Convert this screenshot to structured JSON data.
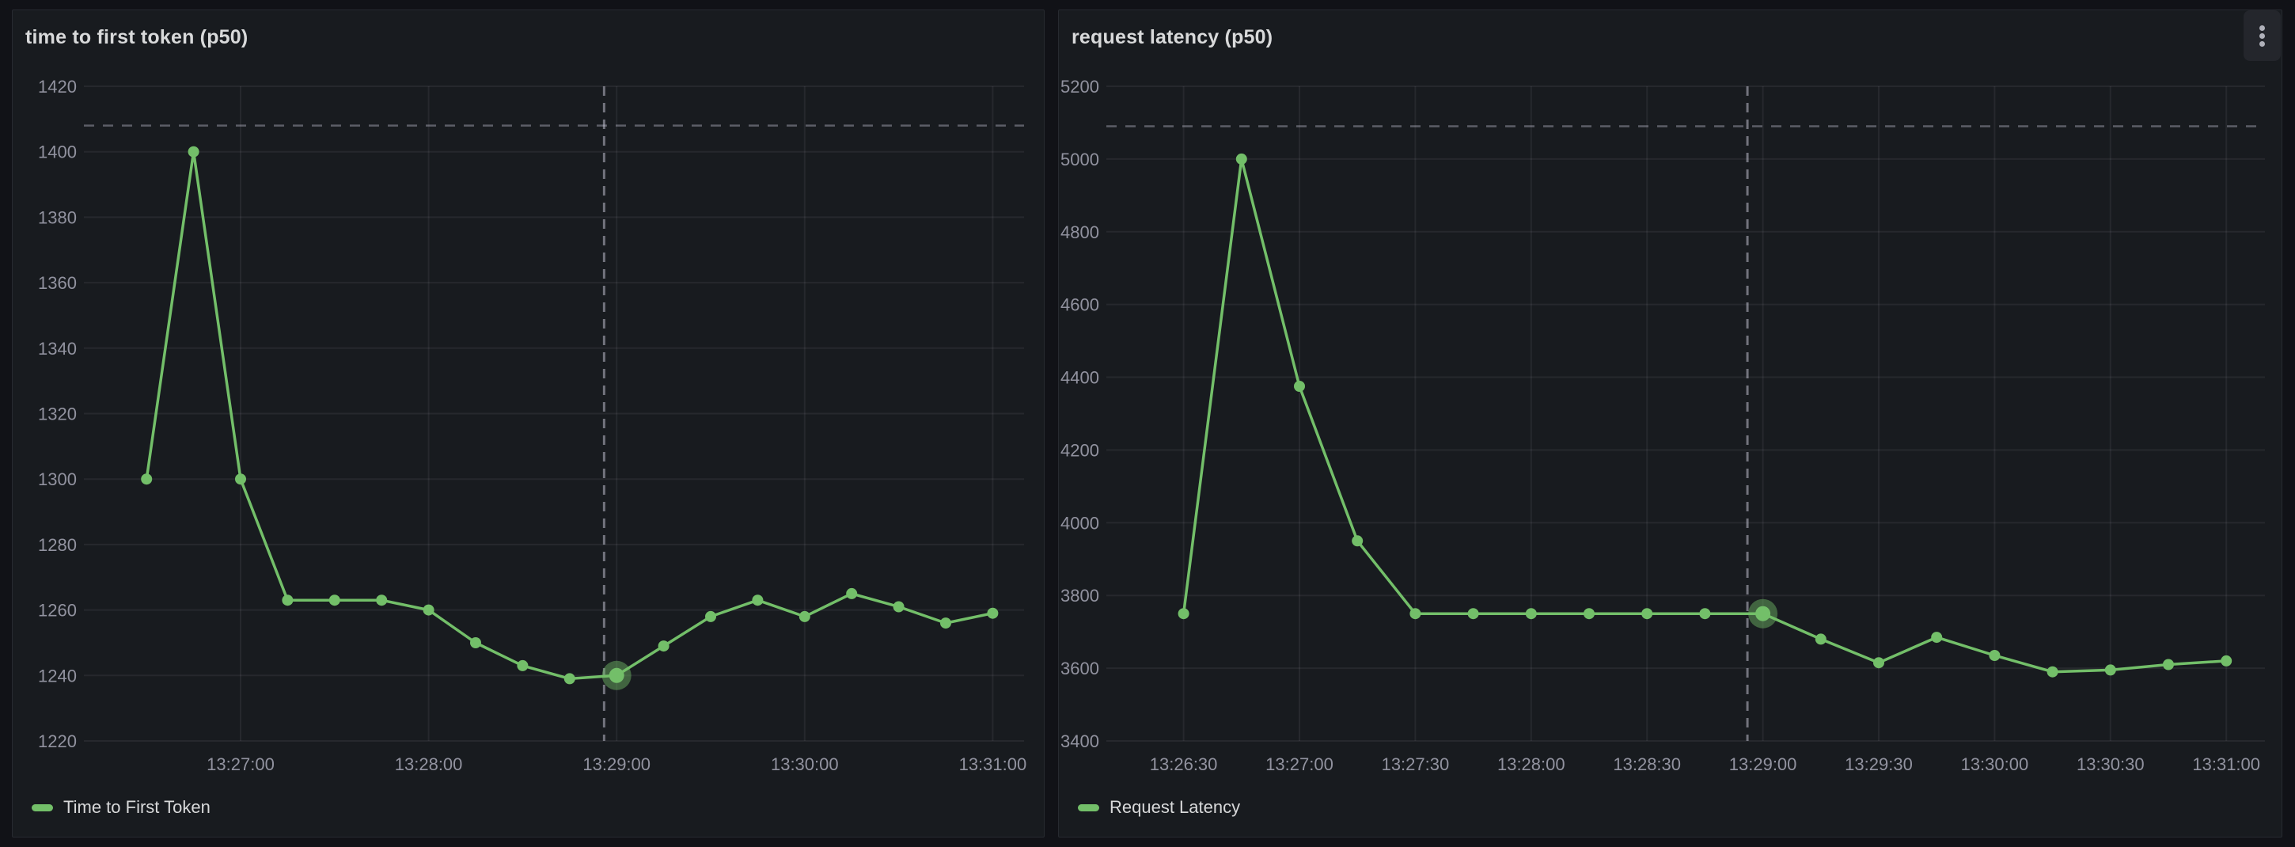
{
  "page": {
    "background": "#111217",
    "panel_background": "#181b1f",
    "accent_color": "#73bf69",
    "text_color": "#d8d9da",
    "tick_label_color": "#9da0ac"
  },
  "panels": [
    {
      "title": "time to first token (p50)",
      "legend": {
        "label": "Time to First Token",
        "swatch_color": "#73bf69"
      }
    },
    {
      "title": "request latency (p50)",
      "legend": {
        "label": "Request Latency",
        "swatch_color": "#73bf69"
      },
      "menu": {
        "icon": "kebab-vertical-icon"
      }
    }
  ],
  "chart_data": [
    {
      "type": "line",
      "title": "time to first token (p50)",
      "x": [
        "13:26:30",
        "13:26:45",
        "13:27:00",
        "13:27:15",
        "13:27:30",
        "13:27:45",
        "13:28:00",
        "13:28:15",
        "13:28:30",
        "13:28:45",
        "13:29:00",
        "13:29:15",
        "13:29:30",
        "13:29:45",
        "13:30:00",
        "13:30:15",
        "13:30:30",
        "13:30:45",
        "13:31:00"
      ],
      "series": [
        {
          "name": "Time to First Token",
          "color": "#73bf69",
          "values": [
            1300,
            1400,
            1300,
            1263,
            1263,
            1263,
            1260,
            1250,
            1243,
            1239,
            1240,
            1249,
            1258,
            1263,
            1258,
            1265,
            1261,
            1256,
            1259
          ]
        }
      ],
      "ylim": [
        1220,
        1420
      ],
      "yticks": [
        1220,
        1240,
        1260,
        1280,
        1300,
        1320,
        1340,
        1360,
        1380,
        1400,
        1420
      ],
      "xticks": [
        "13:27:00",
        "13:28:00",
        "13:29:00",
        "13:30:00",
        "13:31:00"
      ],
      "x_domain": [
        "13:26:10",
        "13:31:10"
      ],
      "threshold": {
        "value": 1408,
        "style": "dashed"
      },
      "crosshair_time": "13:28:56",
      "highlight_index": 10,
      "grid": true,
      "legend_position": "bottom-left",
      "xlabel": "",
      "ylabel": ""
    },
    {
      "type": "line",
      "title": "request latency (p50)",
      "x": [
        "13:26:30",
        "13:26:45",
        "13:27:00",
        "13:27:15",
        "13:27:30",
        "13:27:45",
        "13:28:00",
        "13:28:15",
        "13:28:30",
        "13:28:45",
        "13:29:00",
        "13:29:15",
        "13:29:30",
        "13:29:45",
        "13:30:00",
        "13:30:15",
        "13:30:30",
        "13:30:45",
        "13:31:00"
      ],
      "series": [
        {
          "name": "Request Latency",
          "color": "#73bf69",
          "values": [
            3750,
            5000,
            4375,
            3950,
            3750,
            3750,
            3750,
            3750,
            3750,
            3750,
            3750,
            3680,
            3615,
            3685,
            3635,
            3590,
            3595,
            3610,
            3620
          ]
        }
      ],
      "ylim": [
        3400,
        5200
      ],
      "yticks": [
        3400,
        3600,
        3800,
        4000,
        4200,
        4400,
        4600,
        4800,
        5000,
        5200
      ],
      "xticks": [
        "13:26:30",
        "13:27:00",
        "13:27:30",
        "13:28:00",
        "13:28:30",
        "13:29:00",
        "13:29:30",
        "13:30:00",
        "13:30:30",
        "13:31:00"
      ],
      "x_domain": [
        "13:26:10",
        "13:31:10"
      ],
      "threshold": {
        "value": 5090,
        "style": "dashed"
      },
      "crosshair_time": "13:28:56",
      "highlight_index": 10,
      "grid": true,
      "legend_position": "bottom-left",
      "xlabel": "",
      "ylabel": ""
    }
  ]
}
